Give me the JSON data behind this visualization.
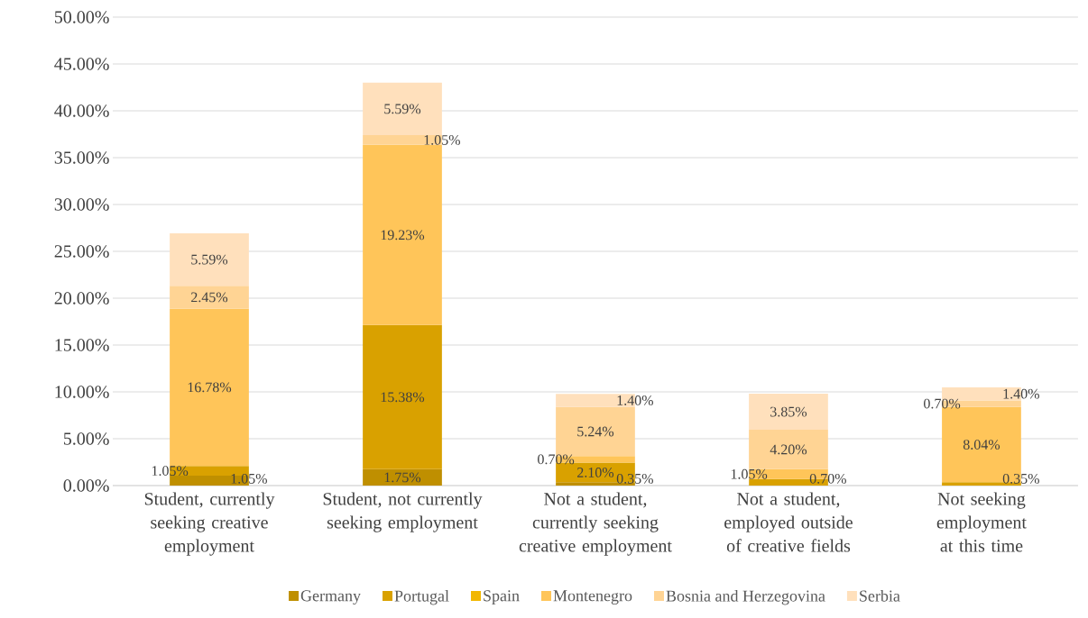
{
  "chart_data": {
    "type": "bar",
    "stacked": true,
    "categories": [
      "Student, currently seeking creative employment",
      "Student, not currently seeking employment",
      "Not a student, currently seeking creative employment",
      "Not a student, employed outside of creative fields",
      "Not seeking employment at this time"
    ],
    "series": [
      {
        "name": "Germany",
        "color": "#bf8f00",
        "values": [
          1.05,
          1.75,
          0.35,
          null,
          null
        ],
        "value_labels": [
          "1.05%",
          "1.75%",
          "0.35%",
          null,
          null
        ]
      },
      {
        "name": "Portugal",
        "color": "#d9a100",
        "values": [
          1.05,
          15.38,
          2.1,
          0.7,
          0.35
        ],
        "value_labels": [
          "1.05%",
          "15.38%",
          "2.10%",
          "0.70%",
          "0.35%"
        ]
      },
      {
        "name": "Spain",
        "color": "#f2b700",
        "values": [
          null,
          null,
          null,
          null,
          null
        ]
      },
      {
        "name": "Montenegro",
        "color": "#ffc559",
        "values": [
          16.78,
          19.23,
          0.7,
          1.05,
          8.04
        ],
        "value_labels": [
          "16.78%",
          "19.23%",
          "0.70%",
          "1.05%",
          "8.04%"
        ]
      },
      {
        "name": "Bosnia and Herzegovina",
        "color": "#ffd494",
        "values": [
          2.45,
          1.05,
          5.24,
          4.2,
          0.7
        ],
        "value_labels": [
          "2.45%",
          "1.05%",
          "5.24%",
          "4.20%",
          "0.70%"
        ]
      },
      {
        "name": "Serbia",
        "color": "#ffe0bc",
        "values": [
          5.59,
          5.59,
          1.4,
          3.85,
          1.4
        ],
        "value_labels": [
          "5.59%",
          "5.59%",
          "1.40%",
          "3.85%",
          "1.40%"
        ]
      }
    ],
    "ylim": [
      0,
      50
    ],
    "yticks": [
      {
        "value": 0,
        "label": "0.00%"
      },
      {
        "value": 5,
        "label": "5.00%"
      },
      {
        "value": 10,
        "label": "10.00%"
      },
      {
        "value": 15,
        "label": "15.00%"
      },
      {
        "value": 20,
        "label": "20.00%"
      },
      {
        "value": 25,
        "label": "25.00%"
      },
      {
        "value": 30,
        "label": "30.00%"
      },
      {
        "value": 35,
        "label": "35.00%"
      },
      {
        "value": 40,
        "label": "40.00%"
      },
      {
        "value": 45,
        "label": "45.00%"
      },
      {
        "value": 50,
        "label": "50.00%"
      }
    ],
    "grid": "y",
    "legend": "bottom"
  }
}
